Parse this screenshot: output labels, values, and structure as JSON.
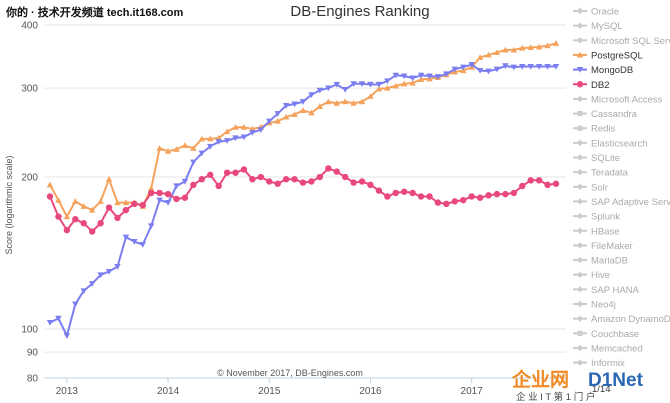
{
  "watermark_top": "你的 · 技术开发频道  tech.it168.com",
  "watermark_brand": {
    "left": "企业网",
    "right": "D1Net",
    "sub": "企 业 I T 第 1 门 户"
  },
  "colors": {
    "postgresql": "#f5a25d",
    "mongodb": "#7b7ef0",
    "db2": "#e8487b",
    "legend_inactive": "#cccccc",
    "legend_active_text": "#333333",
    "legend_inactive_text": "#aaaaaa",
    "grid": "#e6e6e6"
  },
  "chart_data": {
    "type": "line",
    "title": "DB-Engines Ranking",
    "ylabel": "Score (logarithmic scale)",
    "y_scale": "log",
    "ylim": [
      80,
      400
    ],
    "y_ticks": [
      80,
      90,
      100,
      200,
      300,
      400
    ],
    "x_ticks": [
      "2013",
      "2014",
      "2015",
      "2016",
      "2017"
    ],
    "credit": "© November 2017, DB-Engines.com",
    "legend_position": "right",
    "x": [
      "2012-11",
      "2012-12",
      "2013-01",
      "2013-02",
      "2013-03",
      "2013-04",
      "2013-05",
      "2013-06",
      "2013-07",
      "2013-08",
      "2013-09",
      "2013-10",
      "2013-11",
      "2013-12",
      "2014-01",
      "2014-02",
      "2014-03",
      "2014-04",
      "2014-05",
      "2014-06",
      "2014-07",
      "2014-08",
      "2014-09",
      "2014-10",
      "2014-11",
      "2014-12",
      "2015-01",
      "2015-02",
      "2015-03",
      "2015-04",
      "2015-05",
      "2015-06",
      "2015-07",
      "2015-08",
      "2015-09",
      "2015-10",
      "2015-11",
      "2015-12",
      "2016-01",
      "2016-02",
      "2016-03",
      "2016-04",
      "2016-05",
      "2016-06",
      "2016-07",
      "2016-08",
      "2016-09",
      "2016-10",
      "2016-11",
      "2016-12",
      "2017-01",
      "2017-02",
      "2017-03",
      "2017-04",
      "2017-05",
      "2017-06",
      "2017-07",
      "2017-08",
      "2017-09",
      "2017-10",
      "2017-11"
    ],
    "series": [
      {
        "name": "PostgreSQL",
        "color_key": "postgresql",
        "marker": "triangle-up",
        "values": [
          193,
          180,
          167,
          179,
          175,
          172,
          179,
          198,
          178,
          178,
          178,
          175,
          190,
          228,
          225,
          227,
          231,
          228,
          238,
          238,
          239,
          246,
          251,
          251,
          249,
          251,
          256,
          258,
          263,
          266,
          271,
          268,
          276,
          282,
          280,
          282,
          280,
          282,
          289,
          299,
          300,
          303,
          306,
          307,
          312,
          313,
          315,
          319,
          323,
          325,
          330,
          345,
          349,
          353,
          357,
          357,
          360,
          361,
          362,
          364,
          368
        ]
      },
      {
        "name": "MongoDB",
        "color_key": "mongodb",
        "marker": "triangle-down",
        "values": [
          103,
          105,
          97,
          112,
          119,
          123,
          128,
          130,
          133,
          152,
          149,
          147,
          160,
          180,
          178,
          192,
          196,
          214,
          223,
          230,
          235,
          236,
          239,
          240,
          245,
          248,
          258,
          267,
          277,
          279,
          282,
          291,
          297,
          300,
          305,
          298,
          306,
          306,
          305,
          305,
          310,
          318,
          317,
          314,
          318,
          317,
          316,
          320,
          327,
          330,
          334,
          325,
          324,
          327,
          332,
          330,
          331,
          331,
          331,
          331,
          331
        ]
      },
      {
        "name": "DB2",
        "color_key": "db2",
        "marker": "circle",
        "values": [
          183,
          167,
          157,
          165,
          162,
          156,
          162,
          174,
          166,
          172,
          177,
          176,
          186,
          186,
          185,
          181,
          182,
          193,
          198,
          202,
          192,
          204,
          204,
          207,
          198,
          200,
          196,
          194,
          198,
          198,
          195,
          196,
          200,
          208,
          205,
          200,
          195,
          196,
          193,
          188,
          183,
          186,
          187,
          186,
          183,
          183,
          178,
          177,
          179,
          180,
          183,
          182,
          184,
          185,
          185,
          186,
          192,
          197,
          197,
          193,
          194
        ]
      }
    ],
    "legend": [
      {
        "label": "Oracle",
        "marker": "diamond",
        "active": false
      },
      {
        "label": "MySQL",
        "marker": "diamond",
        "active": false
      },
      {
        "label": "Microsoft SQL Server",
        "marker": "diamond",
        "active": false
      },
      {
        "label": "PostgreSQL",
        "marker": "triangle-up",
        "active": true,
        "color_key": "postgresql"
      },
      {
        "label": "MongoDB",
        "marker": "triangle-down",
        "active": true,
        "color_key": "mongodb"
      },
      {
        "label": "DB2",
        "marker": "circle",
        "active": true,
        "color_key": "db2"
      },
      {
        "label": "Microsoft Access",
        "marker": "diamond",
        "active": false
      },
      {
        "label": "Cassandra",
        "marker": "square",
        "active": false
      },
      {
        "label": "Redis",
        "marker": "square",
        "active": false
      },
      {
        "label": "Elasticsearch",
        "marker": "diamond",
        "active": false
      },
      {
        "label": "SQLite",
        "marker": "diamond",
        "active": false
      },
      {
        "label": "Teradata",
        "marker": "diamond",
        "active": false
      },
      {
        "label": "Solr",
        "marker": "diamond",
        "active": false
      },
      {
        "label": "SAP Adaptive Server",
        "marker": "diamond",
        "active": false
      },
      {
        "label": "Splunk",
        "marker": "diamond",
        "active": false
      },
      {
        "label": "HBase",
        "marker": "diamond",
        "active": false
      },
      {
        "label": "FileMaker",
        "marker": "diamond",
        "active": false
      },
      {
        "label": "MariaDB",
        "marker": "diamond",
        "active": false
      },
      {
        "label": "Hive",
        "marker": "diamond",
        "active": false
      },
      {
        "label": "SAP HANA",
        "marker": "diamond",
        "active": false
      },
      {
        "label": "Neo4j",
        "marker": "diamond",
        "active": false
      },
      {
        "label": "Amazon DynamoDB",
        "marker": "diamond",
        "active": false
      },
      {
        "label": "Couchbase",
        "marker": "square",
        "active": false
      },
      {
        "label": "Memcached",
        "marker": "diamond",
        "active": false
      },
      {
        "label": "Informix",
        "marker": "diamond",
        "active": false
      }
    ],
    "pager": "1/14"
  }
}
